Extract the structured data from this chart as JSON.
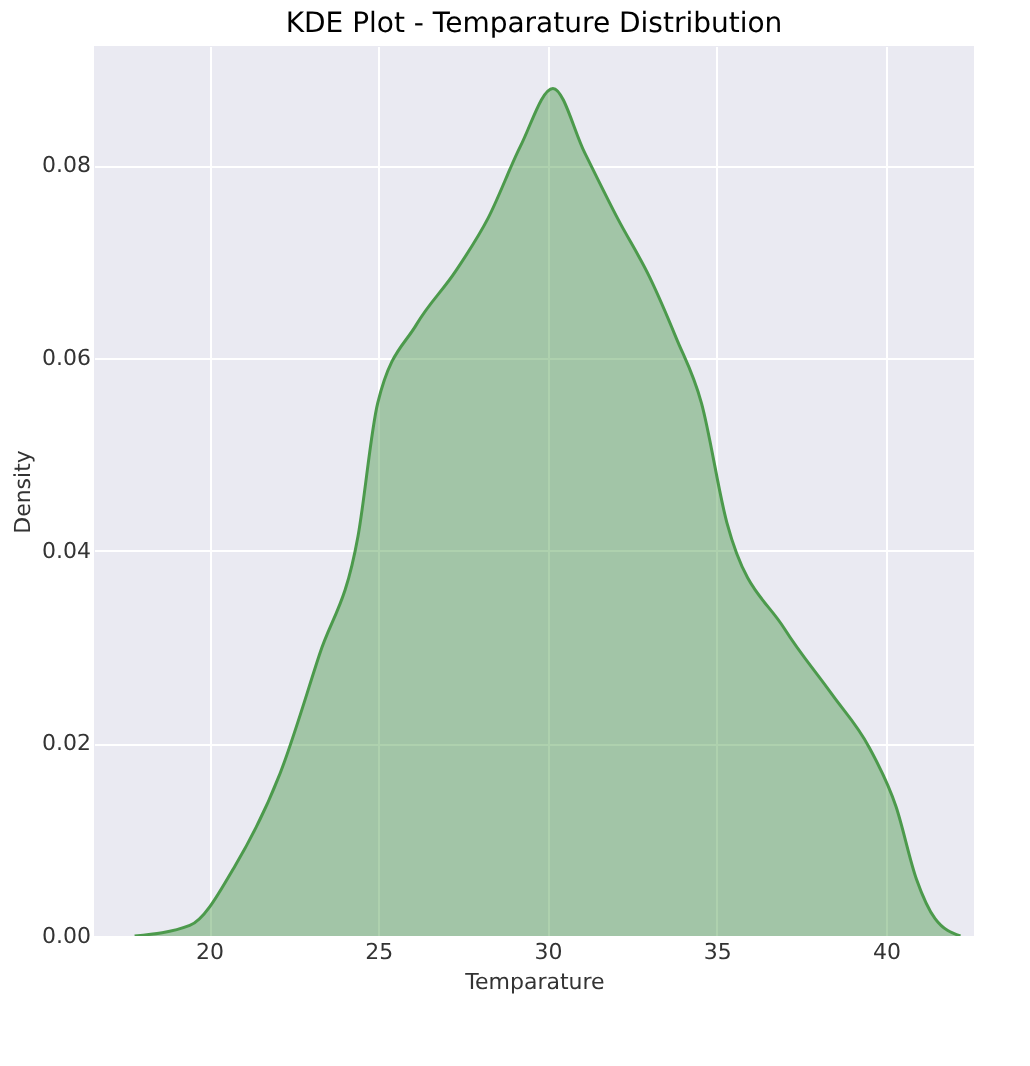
{
  "chart_data": {
    "type": "area",
    "title": "KDE Plot - Temparature Distribution",
    "xlabel": "Temparature",
    "ylabel": "Density",
    "series": [
      {
        "color": "#4c9a4c",
        "x": [
          17.8,
          19.43,
          20.77,
          22.1,
          23.26,
          24.4,
          24.98,
          26.13,
          27.28,
          28.24,
          29.2,
          30.16,
          31.1,
          32.07,
          33.03,
          33.8,
          34.55,
          35.3,
          37.0,
          38.4,
          39.5,
          40.3,
          40.9,
          41.45,
          42.2
        ],
        "values": [
          0.0,
          0.0011,
          0.0073,
          0.0169,
          0.0292,
          0.0415,
          0.0553,
          0.0635,
          0.069,
          0.0745,
          0.082,
          0.088,
          0.0813,
          0.0745,
          0.0683,
          0.0621,
          0.0553,
          0.0429,
          0.0319,
          0.0251,
          0.0196,
          0.0134,
          0.0059,
          0.0018,
          0.0
        ]
      }
    ],
    "xlim": [
      16.6,
      42.6
    ],
    "ylim": [
      0,
      0.0924
    ],
    "xticks": [
      20,
      25,
      30,
      35,
      40
    ],
    "yticks": [
      {
        "value": 0,
        "label": "0.00"
      },
      {
        "value": 0.02,
        "label": "0.02"
      },
      {
        "value": 0.04,
        "label": "0.04"
      },
      {
        "value": 0.06,
        "label": "0.06"
      },
      {
        "value": 0.08,
        "label": "0.08"
      }
    ],
    "grid": true
  }
}
